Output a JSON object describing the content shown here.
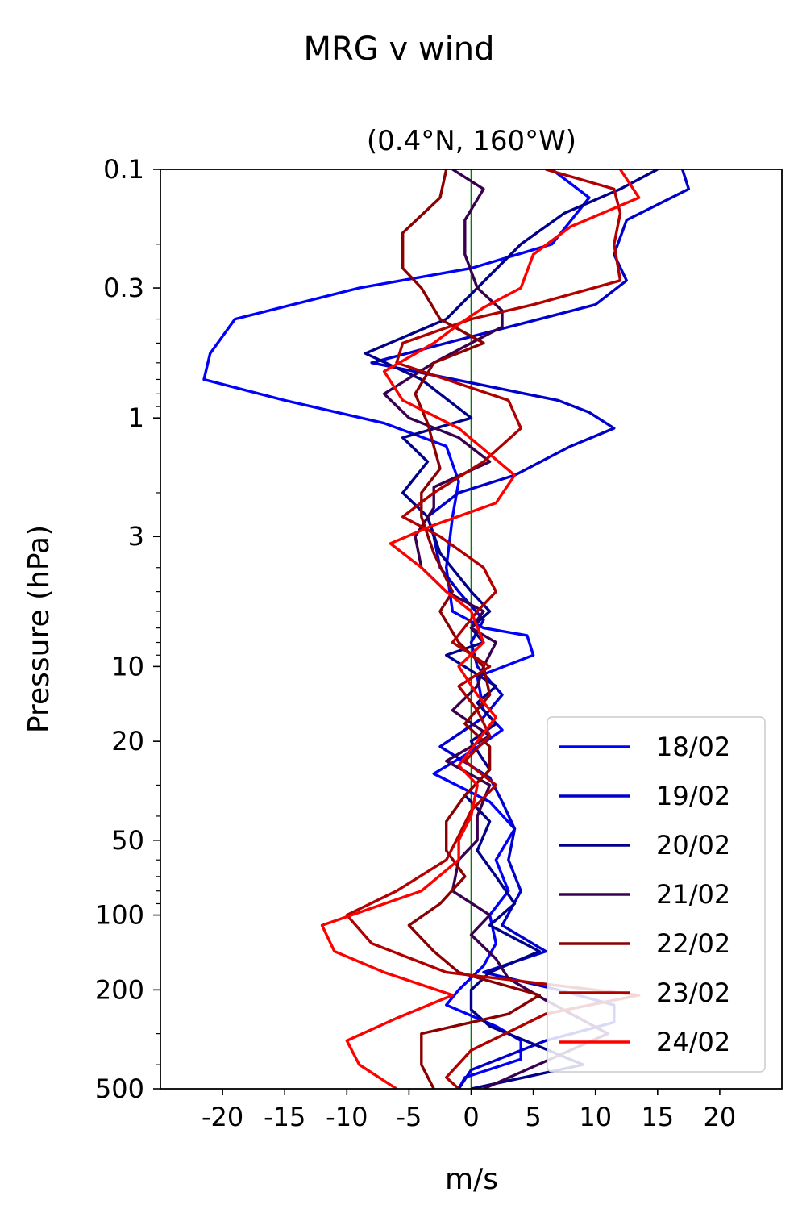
{
  "suptitle": "MRG v wind",
  "chart_data": {
    "type": "line",
    "title": "(0.4°N, 160°W)",
    "xlabel": "m/s",
    "ylabel": "Pressure (hPa)",
    "xlim": [
      -25,
      25
    ],
    "ylim": [
      500,
      0.1
    ],
    "yscale": "log",
    "xticks": [
      -20,
      -15,
      -10,
      -5,
      0,
      5,
      10,
      15,
      20
    ],
    "xtick_labels": [
      "-20",
      "-15",
      "-10",
      "-5",
      "0",
      "5",
      "10",
      "15",
      "20"
    ],
    "yticks": [
      0.1,
      0.3,
      1,
      3,
      10,
      20,
      50,
      100,
      200,
      500
    ],
    "ytick_labels": [
      "0.1",
      "0.3",
      "1",
      "3",
      "10",
      "20",
      "50",
      "100",
      "200",
      "500"
    ],
    "zero_line_color": "#008000",
    "legend_position": "lower right",
    "series": [
      {
        "name": "18/02",
        "color": "#0000ff",
        "x": [
          6.5,
          9.5,
          6.5,
          0,
          -9,
          -19,
          -21,
          -21.5,
          -15,
          -7,
          -2,
          -1,
          -1.5,
          -2,
          -1.5,
          1,
          4.5,
          5,
          0.5,
          1,
          2.5,
          0,
          -3,
          1.5,
          3.5,
          2,
          3,
          1.5,
          2,
          1,
          -1,
          -2,
          2,
          4,
          4,
          -0.5,
          -1
        ],
        "y": [
          0.1,
          0.13,
          0.2,
          0.25,
          0.3,
          0.4,
          0.55,
          0.7,
          0.85,
          1.05,
          1.3,
          1.8,
          2.5,
          4,
          6,
          7,
          7.5,
          9,
          11,
          15,
          18,
          22,
          27,
          35,
          45,
          60,
          80,
          100,
          130,
          160,
          200,
          230,
          280,
          320,
          380,
          450,
          500
        ]
      },
      {
        "name": "19/02",
        "color": "#0000cd",
        "x": [
          17,
          17.5,
          12.5,
          11.5,
          12.5,
          10,
          -2,
          -8,
          7,
          9.5,
          11.5,
          8,
          3.5,
          -1,
          -3.5,
          -3,
          -2.5,
          -1,
          1,
          0,
          0.5,
          2.5,
          1,
          -2.5,
          1.5,
          2.5,
          3.5,
          3,
          4,
          2.5,
          6,
          1,
          7,
          11.5,
          11.5,
          6,
          0,
          -1
        ],
        "y": [
          0.1,
          0.12,
          0.16,
          0.22,
          0.28,
          0.35,
          0.5,
          0.6,
          0.85,
          0.95,
          1.1,
          1.3,
          1.7,
          2,
          2.5,
          3,
          4,
          5,
          6.5,
          8,
          10,
          13,
          16,
          21,
          28,
          35,
          45,
          60,
          80,
          110,
          140,
          170,
          200,
          230,
          270,
          320,
          420,
          500
        ]
      },
      {
        "name": "20/02",
        "color": "#00008b",
        "x": [
          15,
          12,
          7.5,
          4,
          -2,
          -8.5,
          -4,
          0,
          -5.5,
          -3.5,
          -5.5,
          -3.5,
          -2.5,
          0,
          1.5,
          0,
          1,
          -2,
          2,
          0.5,
          2,
          0,
          1.5,
          -0.5,
          1.5,
          0.5,
          2,
          3.5,
          1.5,
          5.5,
          1.5,
          0,
          0,
          1.5,
          5,
          9,
          0
        ],
        "y": [
          0.1,
          0.12,
          0.15,
          0.2,
          0.4,
          0.55,
          0.7,
          1,
          1.2,
          1.5,
          2,
          2.5,
          3.5,
          5,
          6,
          7,
          8,
          9,
          12,
          14,
          17,
          20,
          26,
          33,
          42,
          55,
          70,
          90,
          110,
          140,
          170,
          200,
          240,
          280,
          330,
          400,
          500
        ]
      },
      {
        "name": "21/02",
        "color": "#3a0050",
        "x": [
          -1.5,
          1,
          -0.5,
          -0.5,
          0.5,
          2.5,
          2.5,
          0,
          -3,
          -7,
          -5,
          -1,
          1.5,
          -3,
          -3,
          -4.5,
          -4,
          -2,
          1,
          0,
          2,
          1,
          0.5,
          -1.5,
          1.5,
          -2,
          1.5,
          0.5,
          0.5,
          -1,
          -1.5,
          1.5,
          0,
          2,
          3,
          6,
          11,
          1
        ],
        "y": [
          0.1,
          0.12,
          0.16,
          0.22,
          0.3,
          0.37,
          0.43,
          0.5,
          0.6,
          0.8,
          1.0,
          1.2,
          1.5,
          1.9,
          2.3,
          3,
          4,
          5,
          6,
          7,
          8,
          10,
          12,
          15,
          19,
          24,
          30,
          40,
          50,
          60,
          80,
          100,
          120,
          150,
          180,
          220,
          300,
          500
        ]
      },
      {
        "name": "22/02",
        "color": "#8b0000",
        "x": [
          -2,
          -2.5,
          -5.5,
          -5.5,
          -5.5,
          -4,
          -2.5,
          1,
          -3,
          -4.5,
          -3.5,
          -3,
          -2.5,
          -4,
          -4,
          -3,
          -1.5,
          -2.5,
          -1,
          1,
          1.5,
          -0.5,
          1.5,
          1.5,
          -0.5,
          -2,
          -2,
          -0.5,
          -2.5,
          -5,
          -3,
          -1,
          5.5,
          3,
          -4,
          -4,
          -3
        ],
        "y": [
          0.1,
          0.13,
          0.18,
          0.22,
          0.25,
          0.3,
          0.4,
          0.5,
          0.6,
          0.8,
          1.05,
          1.3,
          1.6,
          2,
          2.5,
          3.5,
          5,
          6,
          8,
          10,
          13,
          17,
          21,
          26,
          33,
          42,
          55,
          70,
          90,
          110,
          140,
          170,
          210,
          250,
          300,
          400,
          500
        ]
      },
      {
        "name": "23/02",
        "color": "#b00000",
        "x": [
          6,
          11.5,
          12,
          11.5,
          12,
          5,
          0,
          -5.5,
          -6,
          -2,
          3,
          4,
          1,
          -3,
          -5.5,
          -2.5,
          1,
          2,
          0.5,
          -1.5,
          1.5,
          -1,
          0.5,
          1.5,
          -0.5,
          2,
          0,
          -1,
          -2,
          -6,
          -10,
          -8,
          -2,
          13.5,
          6,
          0,
          -2,
          -1
        ],
        "y": [
          0.1,
          0.12,
          0.15,
          0.2,
          0.28,
          0.35,
          0.4,
          0.5,
          0.6,
          0.7,
          0.85,
          1.1,
          1.5,
          2,
          2.5,
          3,
          4,
          5,
          6,
          8,
          10,
          12,
          15,
          19,
          24,
          30,
          38,
          48,
          60,
          80,
          100,
          130,
          170,
          210,
          250,
          350,
          450,
          500
        ]
      },
      {
        "name": "24/02",
        "color": "#ff0000",
        "x": [
          12,
          13.5,
          8,
          5,
          4,
          1,
          -1,
          -3,
          -7,
          -5.5,
          -1,
          3.5,
          2,
          -3,
          -6.5,
          -4,
          -2,
          0,
          1,
          -1,
          0.5,
          2,
          0.5,
          -1,
          0.5,
          0,
          -1,
          -1,
          -4,
          -12,
          -11,
          -7,
          -1.5,
          -6,
          -10,
          -9,
          -6
        ],
        "y": [
          0.1,
          0.13,
          0.17,
          0.22,
          0.3,
          0.36,
          0.42,
          0.5,
          0.65,
          0.85,
          1.1,
          1.7,
          2.2,
          2.7,
          3.2,
          4,
          5,
          6,
          8,
          10,
          13,
          16,
          20,
          25,
          30,
          40,
          50,
          60,
          80,
          110,
          140,
          170,
          210,
          260,
          320,
          400,
          500
        ]
      }
    ]
  }
}
